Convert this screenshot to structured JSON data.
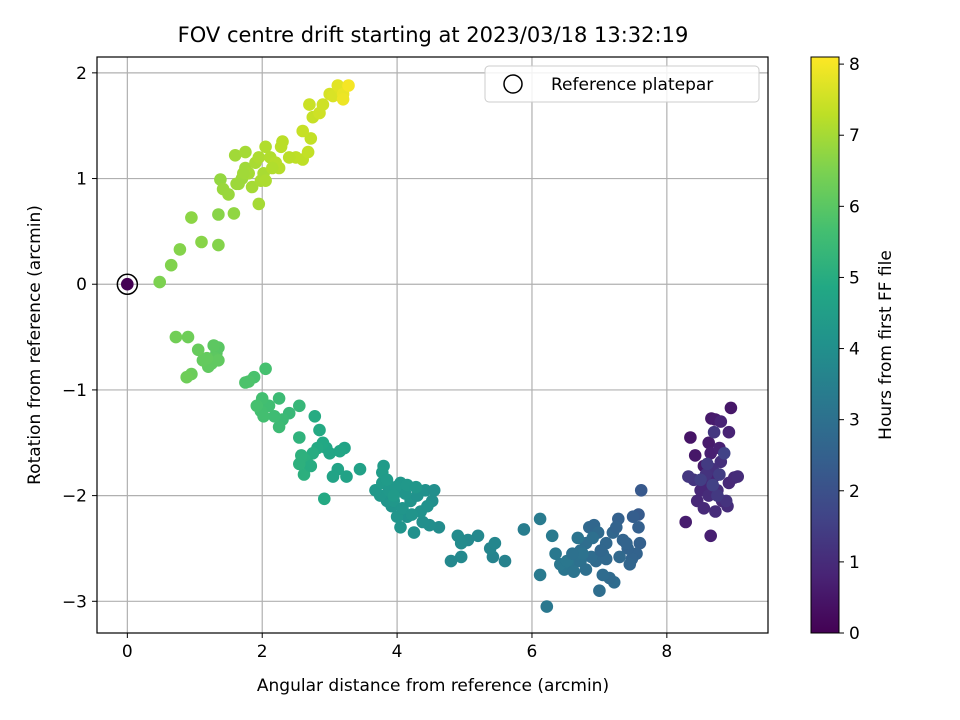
{
  "chart_data": {
    "type": "scatter",
    "title": "FOV centre drift starting at 2023/03/18 13:32:19",
    "xlabel": "Angular distance from reference (arcmin)",
    "ylabel": "Rotation from reference (arcmin)",
    "xlim": [
      -0.45,
      9.5
    ],
    "ylim": [
      -3.3,
      2.15
    ],
    "xticks": [
      0,
      2,
      4,
      6,
      8
    ],
    "yticks": [
      -3,
      -2,
      -1,
      0,
      1,
      2
    ],
    "xtick_labels": [
      "0",
      "2",
      "4",
      "6",
      "8"
    ],
    "ytick_labels": [
      "−3",
      "−2",
      "−1",
      "0",
      "1",
      "2"
    ],
    "grid": true,
    "legend": {
      "position": "top-right",
      "entries": [
        "Reference platepar"
      ]
    },
    "colorbar": {
      "label": "Hours from first FF file",
      "colormap": "viridis",
      "range": [
        0,
        8.1
      ],
      "ticks": [
        0,
        1,
        2,
        3,
        4,
        5,
        6,
        7,
        8
      ],
      "tick_labels": [
        "0",
        "1",
        "2",
        "3",
        "4",
        "5",
        "6",
        "7",
        "8"
      ]
    },
    "reference_point": {
      "x": 0,
      "y": 0,
      "marker": "open-circle"
    },
    "points": [
      [
        0.0,
        0.0,
        0.0
      ],
      [
        8.35,
        -1.45,
        0.45
      ],
      [
        8.42,
        -1.62,
        0.5
      ],
      [
        8.55,
        -1.72,
        0.55
      ],
      [
        8.62,
        -1.5,
        0.6
      ],
      [
        8.66,
        -1.27,
        0.55
      ],
      [
        8.72,
        -1.28,
        0.62
      ],
      [
        8.65,
        -1.6,
        0.7
      ],
      [
        8.78,
        -1.55,
        0.75
      ],
      [
        8.92,
        -1.4,
        0.78
      ],
      [
        8.95,
        -1.17,
        0.5
      ],
      [
        8.7,
        -1.82,
        0.8
      ],
      [
        8.6,
        -1.9,
        0.85
      ],
      [
        8.5,
        -1.95,
        0.88
      ],
      [
        8.45,
        -2.05,
        0.9
      ],
      [
        8.55,
        -2.12,
        0.95
      ],
      [
        8.62,
        -2.0,
        1.0
      ],
      [
        8.75,
        -1.95,
        1.05
      ],
      [
        8.82,
        -2.05,
        0.95
      ],
      [
        8.9,
        -2.1,
        1.0
      ],
      [
        8.92,
        -1.88,
        0.9
      ],
      [
        9.0,
        -1.83,
        0.95
      ],
      [
        9.05,
        -1.82,
        1.0
      ],
      [
        8.8,
        -1.68,
        1.1
      ],
      [
        8.68,
        -1.75,
        1.15
      ],
      [
        8.58,
        -1.8,
        1.2
      ],
      [
        8.4,
        -1.85,
        1.25
      ],
      [
        8.32,
        -1.82,
        1.3
      ],
      [
        8.65,
        -2.38,
        0.7
      ],
      [
        8.28,
        -2.25,
        0.65
      ],
      [
        8.72,
        -2.15,
        1.0
      ],
      [
        8.88,
        -2.05,
        1.2
      ],
      [
        8.75,
        -2.0,
        1.35
      ],
      [
        8.6,
        -1.7,
        1.4
      ],
      [
        8.78,
        -1.8,
        1.45
      ],
      [
        8.5,
        -1.85,
        1.5
      ],
      [
        8.68,
        -1.9,
        1.55
      ],
      [
        8.85,
        -1.6,
        1.6
      ],
      [
        8.7,
        -1.4,
        1.3
      ],
      [
        8.8,
        -1.3,
        0.8
      ],
      [
        7.62,
        -1.95,
        2.25
      ],
      [
        7.58,
        -2.18,
        2.3
      ],
      [
        7.5,
        -2.2,
        2.4
      ],
      [
        7.58,
        -2.3,
        2.45
      ],
      [
        7.6,
        -2.45,
        2.5
      ],
      [
        7.55,
        -2.55,
        2.55
      ],
      [
        7.48,
        -2.6,
        2.6
      ],
      [
        7.42,
        -2.5,
        2.55
      ],
      [
        7.35,
        -2.42,
        2.6
      ],
      [
        7.28,
        -2.22,
        2.5
      ],
      [
        7.2,
        -2.35,
        2.65
      ],
      [
        7.1,
        -2.45,
        2.7
      ],
      [
        7.05,
        -2.55,
        2.75
      ],
      [
        6.95,
        -2.62,
        2.8
      ],
      [
        6.88,
        -2.58,
        2.85
      ],
      [
        6.85,
        -2.3,
        2.75
      ],
      [
        6.92,
        -2.28,
        2.7
      ],
      [
        6.98,
        -2.35,
        2.8
      ],
      [
        6.8,
        -2.45,
        2.9
      ],
      [
        6.72,
        -2.52,
        2.95
      ],
      [
        6.65,
        -2.6,
        3.0
      ],
      [
        6.6,
        -2.68,
        3.05
      ],
      [
        6.55,
        -2.62,
        3.1
      ],
      [
        6.48,
        -2.7,
        3.15
      ],
      [
        6.42,
        -2.65,
        3.2
      ],
      [
        6.62,
        -2.72,
        3.1
      ],
      [
        6.72,
        -2.62,
        3.0
      ],
      [
        6.8,
        -2.7,
        2.95
      ],
      [
        7.0,
        -2.9,
        2.9
      ],
      [
        7.22,
        -2.82,
        2.85
      ],
      [
        7.15,
        -2.78,
        2.8
      ],
      [
        7.1,
        -2.6,
        2.75
      ],
      [
        7.02,
        -2.52,
        2.7
      ],
      [
        6.9,
        -2.4,
        2.95
      ],
      [
        6.75,
        -2.55,
        3.05
      ],
      [
        6.68,
        -2.4,
        3.1
      ],
      [
        6.52,
        -2.62,
        3.2
      ],
      [
        6.35,
        -2.55,
        3.25
      ],
      [
        6.3,
        -2.38,
        3.3
      ],
      [
        6.12,
        -2.22,
        3.35
      ],
      [
        6.12,
        -2.75,
        3.3
      ],
      [
        6.22,
        -3.05,
        3.25
      ],
      [
        5.88,
        -2.32,
        3.4
      ],
      [
        7.3,
        -2.58,
        2.75
      ],
      [
        7.4,
        -2.45,
        2.6
      ],
      [
        7.05,
        -2.75,
        2.85
      ],
      [
        6.6,
        -2.55,
        3.0
      ],
      [
        7.25,
        -2.3,
        2.55
      ],
      [
        7.45,
        -2.65,
        2.65
      ],
      [
        5.6,
        -2.62,
        3.55
      ],
      [
        5.42,
        -2.58,
        3.6
      ],
      [
        5.38,
        -2.5,
        3.65
      ],
      [
        5.45,
        -2.45,
        3.7
      ],
      [
        5.2,
        -2.38,
        3.75
      ],
      [
        5.05,
        -2.42,
        3.8
      ],
      [
        4.95,
        -2.45,
        3.85
      ],
      [
        4.9,
        -2.38,
        3.85
      ],
      [
        4.95,
        -2.58,
        3.8
      ],
      [
        4.8,
        -2.62,
        3.75
      ],
      [
        4.62,
        -2.3,
        3.9
      ],
      [
        4.48,
        -2.28,
        3.95
      ],
      [
        4.38,
        -2.25,
        4.0
      ],
      [
        4.25,
        -2.35,
        4.05
      ],
      [
        4.15,
        -2.2,
        4.1
      ],
      [
        4.05,
        -2.3,
        4.15
      ],
      [
        4.0,
        -2.2,
        4.2
      ],
      [
        3.92,
        -2.1,
        4.15
      ],
      [
        3.85,
        -2.05,
        4.2
      ],
      [
        3.75,
        -2.0,
        4.25
      ],
      [
        3.68,
        -1.95,
        4.3
      ],
      [
        3.78,
        -1.88,
        4.35
      ],
      [
        3.88,
        -1.95,
        4.3
      ],
      [
        3.95,
        -2.05,
        4.25
      ],
      [
        4.08,
        -2.12,
        4.2
      ],
      [
        4.2,
        -2.05,
        4.15
      ],
      [
        4.3,
        -2.0,
        4.1
      ],
      [
        4.42,
        -1.95,
        4.05
      ],
      [
        4.52,
        -2.05,
        4.0
      ],
      [
        4.55,
        -1.95,
        4.0
      ],
      [
        4.35,
        -2.15,
        4.1
      ],
      [
        4.22,
        -2.18,
        4.15
      ],
      [
        4.12,
        -1.98,
        4.2
      ],
      [
        4.05,
        -1.88,
        4.25
      ],
      [
        3.98,
        -1.92,
        4.3
      ],
      [
        3.8,
        -1.72,
        4.4
      ],
      [
        3.78,
        -1.78,
        4.45
      ],
      [
        3.85,
        -1.85,
        4.4
      ],
      [
        4.15,
        -1.9,
        4.3
      ],
      [
        4.28,
        -1.92,
        4.25
      ],
      [
        3.95,
        -2.0,
        4.35
      ],
      [
        4.45,
        -2.1,
        4.1
      ],
      [
        3.45,
        -1.75,
        4.6
      ],
      [
        3.25,
        -1.82,
        4.65
      ],
      [
        3.22,
        -1.55,
        4.7
      ],
      [
        3.12,
        -1.75,
        4.7
      ],
      [
        3.0,
        -1.6,
        4.75
      ],
      [
        2.95,
        -1.55,
        4.8
      ],
      [
        2.9,
        -1.5,
        4.85
      ],
      [
        2.82,
        -1.55,
        4.9
      ],
      [
        2.78,
        -1.25,
        4.95
      ],
      [
        2.85,
        -1.38,
        4.9
      ],
      [
        2.75,
        -1.6,
        5.0
      ],
      [
        2.68,
        -1.7,
        5.05
      ],
      [
        2.62,
        -1.65,
        5.1
      ],
      [
        2.58,
        -1.62,
        5.15
      ],
      [
        2.55,
        -1.45,
        5.2
      ],
      [
        2.62,
        -1.8,
        5.1
      ],
      [
        2.72,
        -1.72,
        5.0
      ],
      [
        2.55,
        -1.7,
        5.15
      ],
      [
        2.92,
        -2.03,
        4.9
      ],
      [
        3.15,
        -1.58,
        4.75
      ],
      [
        3.05,
        -1.82,
        4.7
      ],
      [
        2.55,
        -1.15,
        5.35
      ],
      [
        2.4,
        -1.22,
        5.4
      ],
      [
        2.3,
        -1.28,
        5.45
      ],
      [
        2.25,
        -1.35,
        5.5
      ],
      [
        2.18,
        -1.25,
        5.55
      ],
      [
        2.1,
        -1.15,
        5.6
      ],
      [
        2.0,
        -1.08,
        5.65
      ],
      [
        1.98,
        -1.2,
        5.65
      ],
      [
        1.92,
        -1.15,
        5.7
      ],
      [
        1.88,
        -0.88,
        5.75
      ],
      [
        1.8,
        -0.92,
        5.8
      ],
      [
        1.75,
        -0.93,
        5.8
      ],
      [
        2.05,
        -0.8,
        5.7
      ],
      [
        2.02,
        -1.25,
        5.65
      ],
      [
        2.25,
        -1.08,
        5.5
      ],
      [
        1.35,
        -0.6,
        6.0
      ],
      [
        1.32,
        -0.65,
        6.0
      ],
      [
        1.3,
        -0.7,
        6.05
      ],
      [
        1.25,
        -0.75,
        6.1
      ],
      [
        1.2,
        -0.78,
        6.1
      ],
      [
        1.12,
        -0.72,
        6.15
      ],
      [
        1.05,
        -0.62,
        6.2
      ],
      [
        0.95,
        -0.85,
        6.25
      ],
      [
        0.88,
        -0.88,
        6.3
      ],
      [
        0.9,
        -0.5,
        6.3
      ],
      [
        0.72,
        -0.5,
        6.35
      ],
      [
        1.28,
        -0.58,
        6.05
      ],
      [
        1.35,
        -0.72,
        6.1
      ],
      [
        1.18,
        -0.7,
        6.15
      ],
      [
        0.48,
        0.02,
        6.5
      ],
      [
        0.65,
        0.18,
        6.55
      ],
      [
        0.78,
        0.33,
        6.6
      ],
      [
        1.1,
        0.4,
        6.65
      ],
      [
        0.95,
        0.63,
        6.7
      ],
      [
        1.35,
        0.66,
        6.65
      ],
      [
        1.35,
        0.37,
        6.6
      ],
      [
        1.58,
        0.67,
        6.75
      ],
      [
        1.38,
        0.99,
        6.8
      ],
      [
        1.42,
        0.9,
        6.85
      ],
      [
        1.5,
        0.85,
        6.85
      ],
      [
        1.62,
        0.95,
        6.9
      ],
      [
        1.7,
        1.0,
        6.9
      ],
      [
        1.75,
        1.1,
        6.95
      ],
      [
        1.8,
        1.05,
        7.0
      ],
      [
        1.85,
        0.92,
        7.0
      ],
      [
        1.95,
        0.76,
        7.0
      ],
      [
        1.98,
        0.98,
        7.05
      ],
      [
        2.02,
        1.05,
        7.05
      ],
      [
        2.05,
        0.98,
        7.1
      ],
      [
        1.6,
        1.22,
        6.95
      ],
      [
        1.75,
        1.25,
        7.0
      ],
      [
        1.9,
        1.15,
        7.05
      ],
      [
        1.95,
        1.2,
        7.1
      ],
      [
        2.05,
        1.3,
        7.15
      ],
      [
        2.12,
        1.2,
        7.15
      ],
      [
        2.2,
        1.15,
        7.2
      ],
      [
        2.25,
        1.1,
        7.2
      ],
      [
        2.28,
        1.3,
        7.25
      ],
      [
        2.3,
        1.35,
        7.25
      ],
      [
        2.5,
        1.2,
        7.3
      ],
      [
        2.6,
        1.18,
        7.3
      ],
      [
        2.68,
        1.25,
        7.35
      ],
      [
        2.72,
        1.38,
        7.35
      ],
      [
        2.6,
        1.45,
        7.4
      ],
      [
        2.75,
        1.58,
        7.4
      ],
      [
        2.7,
        1.7,
        7.45
      ],
      [
        2.85,
        1.62,
        7.5
      ],
      [
        2.9,
        1.7,
        7.5
      ],
      [
        3.0,
        1.8,
        7.6
      ],
      [
        3.05,
        1.78,
        7.65
      ],
      [
        3.15,
        1.85,
        7.7
      ],
      [
        3.12,
        1.88,
        7.75
      ],
      [
        3.2,
        1.8,
        7.85
      ],
      [
        3.2,
        1.75,
        7.9
      ],
      [
        3.28,
        1.88,
        8.0
      ],
      [
        1.72,
        1.05,
        6.95
      ],
      [
        1.65,
        0.95,
        6.9
      ],
      [
        2.15,
        1.1,
        7.15
      ],
      [
        2.4,
        1.2,
        7.25
      ]
    ]
  }
}
